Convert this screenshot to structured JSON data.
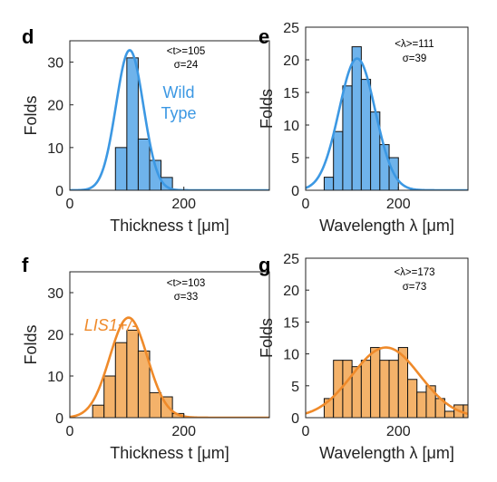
{
  "colors": {
    "wild_bar": "#6FB3EB",
    "wild_line": "#3C98E3",
    "lis_bar": "#F4B26A",
    "lis_line": "#EF8A2A"
  },
  "chart_data": [
    {
      "id": "d",
      "type": "bar",
      "panel_label": "d",
      "title": "",
      "xlabel": "Thickness t [μm]",
      "ylabel": "Folds",
      "xlim": [
        0,
        350
      ],
      "ylim": [
        0,
        35
      ],
      "xticks": [
        0,
        200
      ],
      "yticks": [
        0,
        10,
        20,
        30
      ],
      "bins": [
        {
          "x0": 80,
          "x1": 100,
          "value": 10
        },
        {
          "x0": 100,
          "x1": 120,
          "value": 31
        },
        {
          "x0": 120,
          "x1": 140,
          "value": 12
        },
        {
          "x0": 140,
          "x1": 160,
          "value": 7
        },
        {
          "x0": 160,
          "x1": 180,
          "value": 3
        }
      ],
      "fit": {
        "type": "gaussian",
        "mean": 105,
        "sigma": 24,
        "peak": 32.8
      },
      "stats": {
        "mean_text": "<t>=105",
        "sigma_text": "σ=24"
      },
      "annotation": {
        "lines": [
          "Wild",
          "Type"
        ],
        "italic": false
      },
      "color_key": "wild"
    },
    {
      "id": "e",
      "type": "bar",
      "panel_label": "e",
      "title": "",
      "xlabel": "Wavelength λ [μm]",
      "ylabel": "Folds",
      "xlim": [
        0,
        350
      ],
      "ylim": [
        0,
        25
      ],
      "xticks": [
        0,
        200
      ],
      "yticks": [
        0,
        5,
        10,
        15,
        20,
        25
      ],
      "bins": [
        {
          "x0": 40,
          "x1": 60,
          "value": 2
        },
        {
          "x0": 60,
          "x1": 80,
          "value": 9
        },
        {
          "x0": 80,
          "x1": 100,
          "value": 16
        },
        {
          "x0": 100,
          "x1": 120,
          "value": 22
        },
        {
          "x0": 120,
          "x1": 140,
          "value": 17
        },
        {
          "x0": 140,
          "x1": 160,
          "value": 12
        },
        {
          "x0": 160,
          "x1": 180,
          "value": 7
        },
        {
          "x0": 180,
          "x1": 200,
          "value": 5
        }
      ],
      "fit": {
        "type": "gaussian",
        "mean": 111,
        "sigma": 39,
        "peak": 20.2
      },
      "stats": {
        "mean_text": "<λ>=111",
        "sigma_text": "σ=39"
      },
      "color_key": "wild"
    },
    {
      "id": "f",
      "type": "bar",
      "panel_label": "f",
      "title": "",
      "xlabel": "Thickness t [μm]",
      "ylabel": "Folds",
      "xlim": [
        0,
        350
      ],
      "ylim": [
        0,
        35
      ],
      "xticks": [
        0,
        200
      ],
      "yticks": [
        0,
        10,
        20,
        30
      ],
      "bins": [
        {
          "x0": 40,
          "x1": 60,
          "value": 3
        },
        {
          "x0": 60,
          "x1": 80,
          "value": 10
        },
        {
          "x0": 80,
          "x1": 100,
          "value": 18
        },
        {
          "x0": 100,
          "x1": 120,
          "value": 21
        },
        {
          "x0": 120,
          "x1": 140,
          "value": 16
        },
        {
          "x0": 140,
          "x1": 160,
          "value": 6
        },
        {
          "x0": 160,
          "x1": 180,
          "value": 5
        },
        {
          "x0": 180,
          "x1": 200,
          "value": 1
        }
      ],
      "fit": {
        "type": "gaussian",
        "mean": 103,
        "sigma": 33,
        "peak": 24
      },
      "stats": {
        "mean_text": "<t>=103",
        "sigma_text": "σ=33"
      },
      "annotation": {
        "lines": [
          "LIS1+/-"
        ],
        "italic": true
      },
      "color_key": "lis"
    },
    {
      "id": "g",
      "type": "bar",
      "panel_label": "g",
      "title": "",
      "xlabel": "Wavelength λ [μm]",
      "ylabel": "Folds",
      "xlim": [
        0,
        350
      ],
      "ylim": [
        0,
        25
      ],
      "xticks": [
        0,
        200
      ],
      "yticks": [
        0,
        5,
        10,
        15,
        20,
        25
      ],
      "bins": [
        {
          "x0": 40,
          "x1": 60,
          "value": 3
        },
        {
          "x0": 60,
          "x1": 80,
          "value": 9
        },
        {
          "x0": 80,
          "x1": 100,
          "value": 9
        },
        {
          "x0": 100,
          "x1": 120,
          "value": 8
        },
        {
          "x0": 120,
          "x1": 140,
          "value": 9
        },
        {
          "x0": 140,
          "x1": 160,
          "value": 11
        },
        {
          "x0": 160,
          "x1": 180,
          "value": 9
        },
        {
          "x0": 180,
          "x1": 200,
          "value": 9
        },
        {
          "x0": 200,
          "x1": 220,
          "value": 11
        },
        {
          "x0": 220,
          "x1": 240,
          "value": 6
        },
        {
          "x0": 240,
          "x1": 260,
          "value": 4
        },
        {
          "x0": 260,
          "x1": 280,
          "value": 5
        },
        {
          "x0": 280,
          "x1": 300,
          "value": 3
        },
        {
          "x0": 300,
          "x1": 320,
          "value": 1
        },
        {
          "x0": 320,
          "x1": 340,
          "value": 2
        },
        {
          "x0": 340,
          "x1": 360,
          "value": 2
        }
      ],
      "fit": {
        "type": "gaussian",
        "mean": 173,
        "sigma": 73,
        "peak": 11
      },
      "stats": {
        "mean_text": "<λ>=173",
        "sigma_text": "σ=73"
      },
      "color_key": "lis"
    }
  ]
}
